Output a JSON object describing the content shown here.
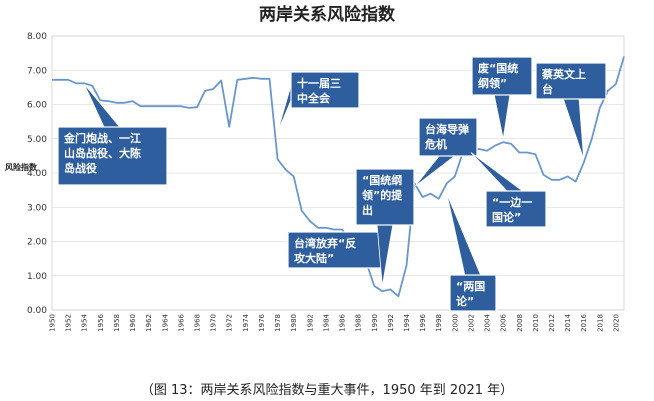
{
  "chart_data": {
    "type": "line",
    "title": "两岸关系风险指数",
    "ylabel": "风险指数",
    "ylim": [
      0,
      8
    ],
    "yticks": [
      "0.00",
      "1.00",
      "2.00",
      "3.00",
      "4.00",
      "5.00",
      "6.00",
      "7.00",
      "8.00"
    ],
    "xlim": [
      1950,
      2021
    ],
    "xticks": [
      "1950",
      "1952",
      "1954",
      "1956",
      "1958",
      "1960",
      "1962",
      "1964",
      "1966",
      "1968",
      "1970",
      "1972",
      "1974",
      "1976",
      "1978",
      "1980",
      "1982",
      "1984",
      "1986",
      "1988",
      "1990",
      "1992",
      "1994",
      "1996",
      "1998",
      "2000",
      "2002",
      "2004",
      "2006",
      "2008",
      "2010",
      "2012",
      "2014",
      "2016",
      "2018",
      "2020"
    ],
    "grid": true,
    "line_color": "#6a96d0",
    "series": [
      {
        "points": [
          [
            1950,
            6.72
          ],
          [
            1951,
            6.72
          ],
          [
            1952,
            6.72
          ],
          [
            1953,
            6.62
          ],
          [
            1954,
            6.62
          ],
          [
            1955,
            6.55
          ],
          [
            1956,
            6.12
          ],
          [
            1957,
            6.1
          ],
          [
            1958,
            6.05
          ],
          [
            1959,
            6.05
          ],
          [
            1960,
            6.1
          ],
          [
            1961,
            5.95
          ],
          [
            1962,
            5.95
          ],
          [
            1963,
            5.95
          ],
          [
            1964,
            5.95
          ],
          [
            1965,
            5.95
          ],
          [
            1966,
            5.95
          ],
          [
            1967,
            5.9
          ],
          [
            1968,
            5.92
          ],
          [
            1969,
            6.4
          ],
          [
            1970,
            6.45
          ],
          [
            1971,
            6.7
          ],
          [
            1972,
            5.35
          ],
          [
            1973,
            6.72
          ],
          [
            1974,
            6.75
          ],
          [
            1975,
            6.78
          ],
          [
            1976,
            6.75
          ],
          [
            1977,
            6.75
          ],
          [
            1978,
            4.4
          ],
          [
            1979,
            4.1
          ],
          [
            1980,
            3.9
          ],
          [
            1981,
            2.9
          ],
          [
            1982,
            2.6
          ],
          [
            1983,
            2.4
          ],
          [
            1984,
            2.4
          ],
          [
            1985,
            2.35
          ],
          [
            1986,
            2.35
          ],
          [
            1987,
            2.05
          ],
          [
            1988,
            1.95
          ],
          [
            1989,
            1.4
          ],
          [
            1990,
            0.7
          ],
          [
            1991,
            0.55
          ],
          [
            1992,
            0.6
          ],
          [
            1993,
            0.4
          ],
          [
            1994,
            1.3
          ],
          [
            1995,
            3.7
          ],
          [
            1996,
            3.3
          ],
          [
            1997,
            3.4
          ],
          [
            1998,
            3.25
          ],
          [
            1999,
            3.7
          ],
          [
            2000,
            3.9
          ],
          [
            2001,
            4.6
          ],
          [
            2002,
            4.65
          ],
          [
            2003,
            4.7
          ],
          [
            2004,
            4.65
          ],
          [
            2005,
            4.8
          ],
          [
            2006,
            4.9
          ],
          [
            2007,
            4.85
          ],
          [
            2008,
            4.6
          ],
          [
            2009,
            4.6
          ],
          [
            2010,
            4.55
          ],
          [
            2011,
            3.95
          ],
          [
            2012,
            3.8
          ],
          [
            2013,
            3.8
          ],
          [
            2014,
            3.9
          ],
          [
            2015,
            3.75
          ],
          [
            2016,
            4.3
          ],
          [
            2017,
            5.0
          ],
          [
            2018,
            5.9
          ],
          [
            2019,
            6.4
          ],
          [
            2020,
            6.6
          ],
          [
            2021,
            7.4
          ]
        ]
      }
    ],
    "annotations": [
      {
        "lines": [
          "金门炮战、一江",
          "山岛战役、大陈",
          "岛战役"
        ],
        "target": [
          1954,
          6.6
        ]
      },
      {
        "lines": [
          "十一届三",
          "中全会"
        ],
        "target": [
          1978,
          5.2
        ]
      },
      {
        "lines": [
          "台湾放弃“反",
          "攻大陆”"
        ],
        "target": [
          1987,
          2.1
        ]
      },
      {
        "lines": [
          "“国统纲",
          "领”的提",
          "出"
        ],
        "target": [
          1991,
          0.7
        ]
      },
      {
        "lines": [
          "台海导弹",
          "危机"
        ],
        "target": [
          1995,
          3.6
        ]
      },
      {
        "lines": [
          "“两国",
          "论”"
        ],
        "target": [
          1999,
          3.4
        ]
      },
      {
        "lines": [
          "废“国统",
          "纲领”"
        ],
        "target": [
          2006,
          5.0
        ]
      },
      {
        "lines": [
          "“一边一",
          "国论”"
        ],
        "target": [
          2002,
          4.6
        ]
      },
      {
        "lines": [
          "蔡英文上",
          "台"
        ],
        "target": [
          2016,
          4.4
        ]
      }
    ]
  },
  "caption": "（图 13：两岸关系风险指数与重大事件，1950 年到 2021 年）"
}
